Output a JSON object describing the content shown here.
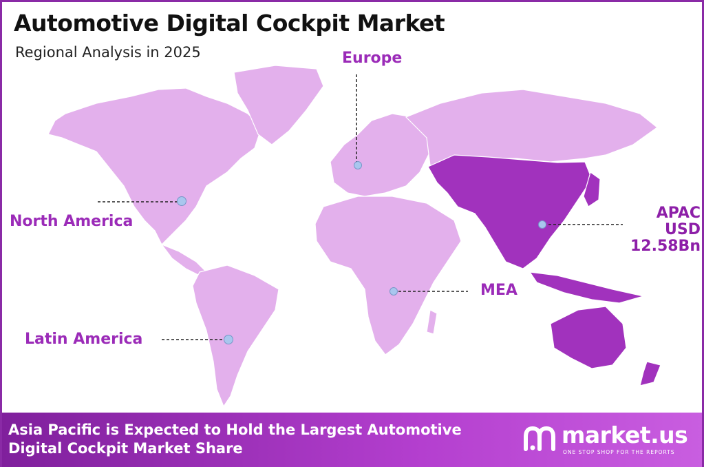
{
  "header": {
    "title": "Automotive Digital Cockpit Market",
    "subtitle": "Regional Analysis in 2025"
  },
  "regions": [
    {
      "name": "Europe",
      "highlight": false
    },
    {
      "name": "North America",
      "highlight": false
    },
    {
      "name": "APAC",
      "value": "USD 12.58Bn",
      "highlight": true
    },
    {
      "name": "MEA",
      "highlight": false
    },
    {
      "name": "Latin America",
      "highlight": false
    }
  ],
  "footer": {
    "text": "Asia Pacific is Expected to Hold the Largest Automotive Digital Cockpit Market Share"
  },
  "brand": {
    "name": "market.us",
    "tagline": "ONE STOP SHOP FOR THE REPORTS"
  },
  "colors": {
    "land": "#e3b0ec",
    "highlight": "#a132bd",
    "label": "#9b2bb8",
    "marker": "#a9c6ee",
    "footer_start": "#7f1f9c",
    "footer_end": "#c95ee0"
  }
}
